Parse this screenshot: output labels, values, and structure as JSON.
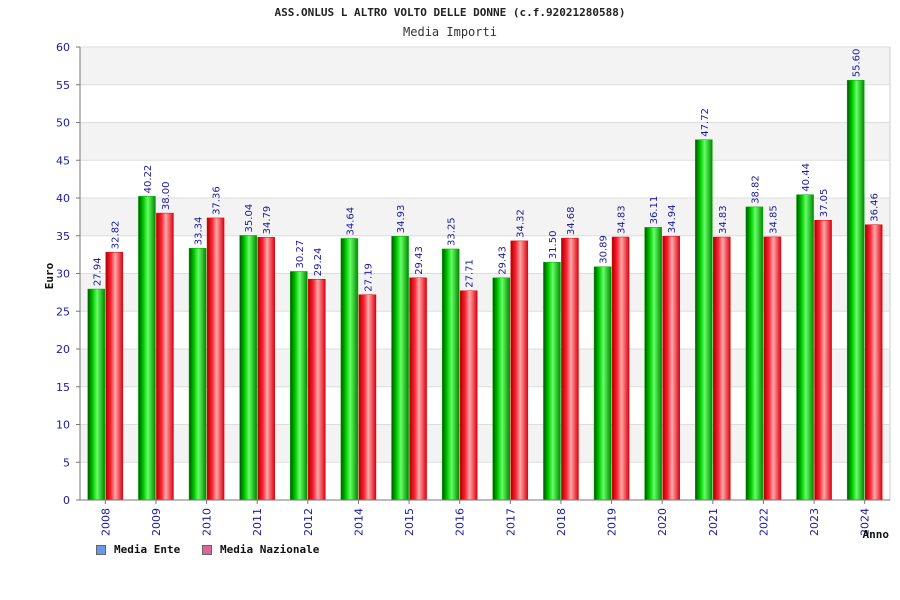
{
  "chart_data": {
    "type": "bar",
    "title": "ASS.ONLUS L ALTRO VOLTO DELLE DONNE (c.f.92021280588)",
    "subtitle": "Media Importi",
    "xlabel": "Anno",
    "ylabel": "Euro",
    "ylim": [
      0,
      60
    ],
    "yticks": [
      0,
      5,
      10,
      15,
      20,
      25,
      30,
      35,
      40,
      45,
      50,
      55,
      60
    ],
    "categories": [
      "2008",
      "2009",
      "2010",
      "2011",
      "2012",
      "2014",
      "2015",
      "2016",
      "2017",
      "2018",
      "2019",
      "2020",
      "2021",
      "2022",
      "2023",
      "2024"
    ],
    "series": [
      {
        "name": "Media Ente",
        "color": "#00b000",
        "legend_color": "#6699ee",
        "values": [
          27.94,
          40.22,
          33.34,
          35.04,
          30.27,
          34.64,
          34.93,
          33.25,
          29.43,
          31.5,
          30.89,
          36.11,
          47.72,
          38.82,
          40.44,
          55.6
        ],
        "labels": [
          "27.94",
          "40.22",
          "33.34",
          "35.04",
          "30.27",
          "34.64",
          "34.93",
          "33.25",
          "29.43",
          "31.50",
          "30.89",
          "36.11",
          "47.72",
          "38.82",
          "40.44",
          "55.60"
        ]
      },
      {
        "name": "Media Nazionale",
        "color": "#ee1122",
        "legend_color": "#dd6699",
        "values": [
          32.82,
          38.0,
          37.36,
          34.79,
          29.24,
          27.19,
          29.43,
          27.71,
          34.32,
          34.68,
          34.83,
          34.94,
          34.83,
          34.85,
          37.05,
          36.46
        ],
        "labels": [
          "32.82",
          "38.00",
          "37.36",
          "34.79",
          "29.24",
          "27.19",
          "29.43",
          "27.71",
          "34.32",
          "34.68",
          "34.83",
          "34.94",
          "34.83",
          "34.85",
          "37.05",
          "36.46"
        ]
      }
    ],
    "grid": true,
    "legend_position": "bottom-left"
  }
}
